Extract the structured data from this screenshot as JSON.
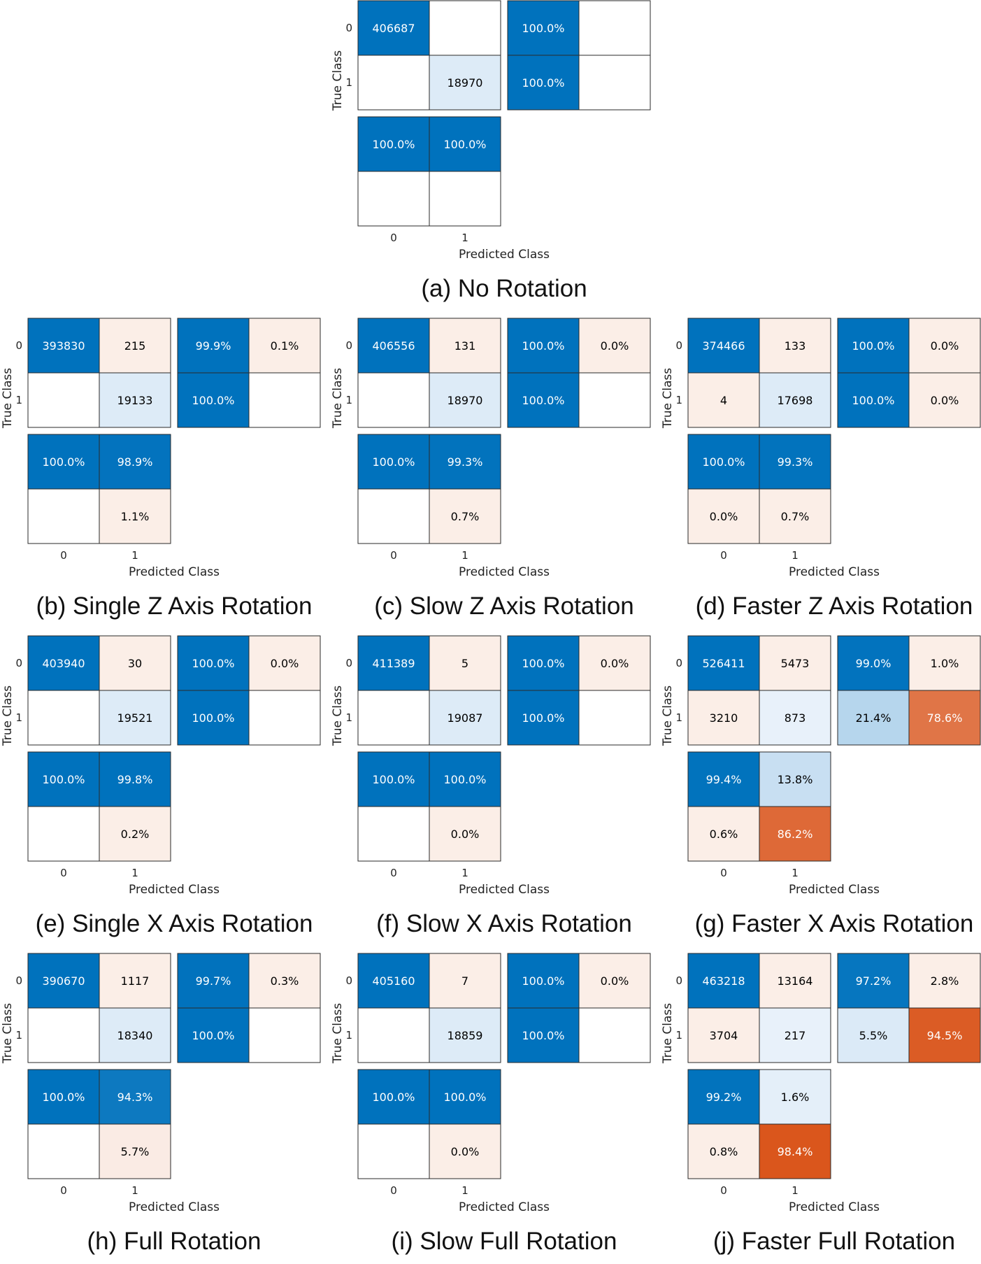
{
  "chart_data": [
    {
      "type": "heatmap",
      "caption": "(a) No Rotation",
      "xlabel": "Predicted Class",
      "ylabel": "True Class",
      "classes": [
        "0",
        "1"
      ],
      "counts": [
        [
          406687,
          null
        ],
        [
          null,
          18970
        ]
      ],
      "row_summary": [
        [
          "100.0%",
          null
        ],
        [
          "100.0%",
          null
        ]
      ],
      "column_summary": [
        [
          "100.0%",
          "100.0%"
        ],
        [
          null,
          null
        ]
      ]
    },
    {
      "type": "heatmap",
      "caption": "(b) Single Z Axis Rotation",
      "xlabel": "Predicted Class",
      "ylabel": "True Class",
      "classes": [
        "0",
        "1"
      ],
      "counts": [
        [
          393830,
          215
        ],
        [
          null,
          19133
        ]
      ],
      "row_summary": [
        [
          "99.9%",
          "0.1%"
        ],
        [
          "100.0%",
          null
        ]
      ],
      "column_summary": [
        [
          "100.0%",
          "98.9%"
        ],
        [
          null,
          "1.1%"
        ]
      ]
    },
    {
      "type": "heatmap",
      "caption": "(c) Slow Z Axis Rotation",
      "xlabel": "Predicted Class",
      "ylabel": "True Class",
      "classes": [
        "0",
        "1"
      ],
      "counts": [
        [
          406556,
          131
        ],
        [
          null,
          18970
        ]
      ],
      "row_summary": [
        [
          "100.0%",
          "0.0%"
        ],
        [
          "100.0%",
          null
        ]
      ],
      "column_summary": [
        [
          "100.0%",
          "99.3%"
        ],
        [
          null,
          "0.7%"
        ]
      ]
    },
    {
      "type": "heatmap",
      "caption": "(d) Faster Z Axis Rotation",
      "xlabel": "Predicted Class",
      "ylabel": "True Class",
      "classes": [
        "0",
        "1"
      ],
      "counts": [
        [
          374466,
          133
        ],
        [
          4,
          17698
        ]
      ],
      "row_summary": [
        [
          "100.0%",
          "0.0%"
        ],
        [
          "100.0%",
          "0.0%"
        ]
      ],
      "column_summary": [
        [
          "100.0%",
          "99.3%"
        ],
        [
          "0.0%",
          "0.7%"
        ]
      ]
    },
    {
      "type": "heatmap",
      "caption": "(e) Single X Axis Rotation",
      "xlabel": "Predicted Class",
      "ylabel": "True Class",
      "classes": [
        "0",
        "1"
      ],
      "counts": [
        [
          403940,
          30
        ],
        [
          null,
          19521
        ]
      ],
      "row_summary": [
        [
          "100.0%",
          "0.0%"
        ],
        [
          "100.0%",
          null
        ]
      ],
      "column_summary": [
        [
          "100.0%",
          "99.8%"
        ],
        [
          null,
          "0.2%"
        ]
      ]
    },
    {
      "type": "heatmap",
      "caption": "(f) Slow X Axis Rotation",
      "xlabel": "Predicted Class",
      "ylabel": "True Class",
      "classes": [
        "0",
        "1"
      ],
      "counts": [
        [
          411389,
          5
        ],
        [
          null,
          19087
        ]
      ],
      "row_summary": [
        [
          "100.0%",
          "0.0%"
        ],
        [
          "100.0%",
          null
        ]
      ],
      "column_summary": [
        [
          "100.0%",
          "100.0%"
        ],
        [
          null,
          "0.0%"
        ]
      ]
    },
    {
      "type": "heatmap",
      "caption": "(g) Faster X Axis Rotation",
      "xlabel": "Predicted Class",
      "ylabel": "True Class",
      "classes": [
        "0",
        "1"
      ],
      "counts": [
        [
          526411,
          5473
        ],
        [
          3210,
          873
        ]
      ],
      "row_summary": [
        [
          "99.0%",
          "1.0%"
        ],
        [
          "21.4%",
          "78.6%"
        ]
      ],
      "column_summary": [
        [
          "99.4%",
          "13.8%"
        ],
        [
          "0.6%",
          "86.2%"
        ]
      ]
    },
    {
      "type": "heatmap",
      "caption": "(h) Full Rotation",
      "xlabel": "Predicted Class",
      "ylabel": "True Class",
      "classes": [
        "0",
        "1"
      ],
      "counts": [
        [
          390670,
          1117
        ],
        [
          null,
          18340
        ]
      ],
      "row_summary": [
        [
          "99.7%",
          "0.3%"
        ],
        [
          "100.0%",
          null
        ]
      ],
      "column_summary": [
        [
          "100.0%",
          "94.3%"
        ],
        [
          null,
          "5.7%"
        ]
      ]
    },
    {
      "type": "heatmap",
      "caption": "(i) Slow Full Rotation",
      "xlabel": "Predicted Class",
      "ylabel": "True Class",
      "classes": [
        "0",
        "1"
      ],
      "counts": [
        [
          405160,
          7
        ],
        [
          null,
          18859
        ]
      ],
      "row_summary": [
        [
          "100.0%",
          "0.0%"
        ],
        [
          "100.0%",
          null
        ]
      ],
      "column_summary": [
        [
          "100.0%",
          "100.0%"
        ],
        [
          null,
          "0.0%"
        ]
      ]
    },
    {
      "type": "heatmap",
      "caption": "(j) Faster Full Rotation",
      "xlabel": "Predicted Class",
      "ylabel": "True Class",
      "classes": [
        "0",
        "1"
      ],
      "counts": [
        [
          463218,
          13164
        ],
        [
          3704,
          217
        ]
      ],
      "row_summary": [
        [
          "97.2%",
          "2.8%"
        ],
        [
          "5.5%",
          "94.5%"
        ]
      ],
      "column_summary": [
        [
          "99.2%",
          "1.6%"
        ],
        [
          "0.8%",
          "98.4%"
        ]
      ]
    }
  ]
}
